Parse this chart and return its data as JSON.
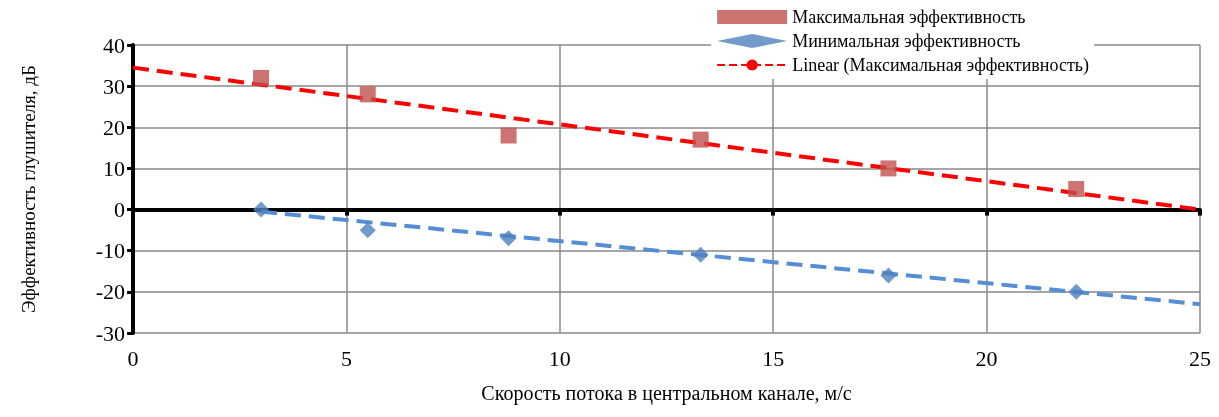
{
  "chart_data": {
    "type": "scatter",
    "xlabel": "Скорость потока в центральном канале, м/с",
    "ylabel": "Эффективность глушителя, дБ",
    "x": [
      3,
      5.5,
      8.8,
      13.3,
      17.7,
      22.1
    ],
    "series": [
      {
        "name": "Максимальная эффективность",
        "color": "#c0504d",
        "marker": "square",
        "values": [
          32,
          28,
          18,
          17,
          10,
          5
        ]
      },
      {
        "name": "Минимальная эффективность",
        "color": "#4f81bd",
        "marker": "diamond",
        "values": [
          0,
          -5,
          -7,
          -11,
          -16,
          -20
        ]
      },
      {
        "name": "Linear (Максимальная эффективность)",
        "type": "line",
        "color": "#ff0000",
        "line_style": "dashed",
        "marker": "none",
        "x": [
          0,
          25
        ],
        "values": [
          34.5,
          0
        ]
      },
      {
        "type": "line",
        "color": "#558ed5",
        "line_style": "dashed",
        "marker": "none",
        "x": [
          3,
          25
        ],
        "values": [
          -0.5,
          -23
        ]
      }
    ],
    "xlim": [
      0,
      25
    ],
    "xticks": [
      0,
      5,
      10,
      15,
      20,
      25
    ],
    "ylim": [
      -30,
      40
    ],
    "yticks": [
      -30,
      -20,
      -10,
      0,
      10,
      20,
      30,
      40
    ],
    "grid": true,
    "legend": "top right"
  }
}
